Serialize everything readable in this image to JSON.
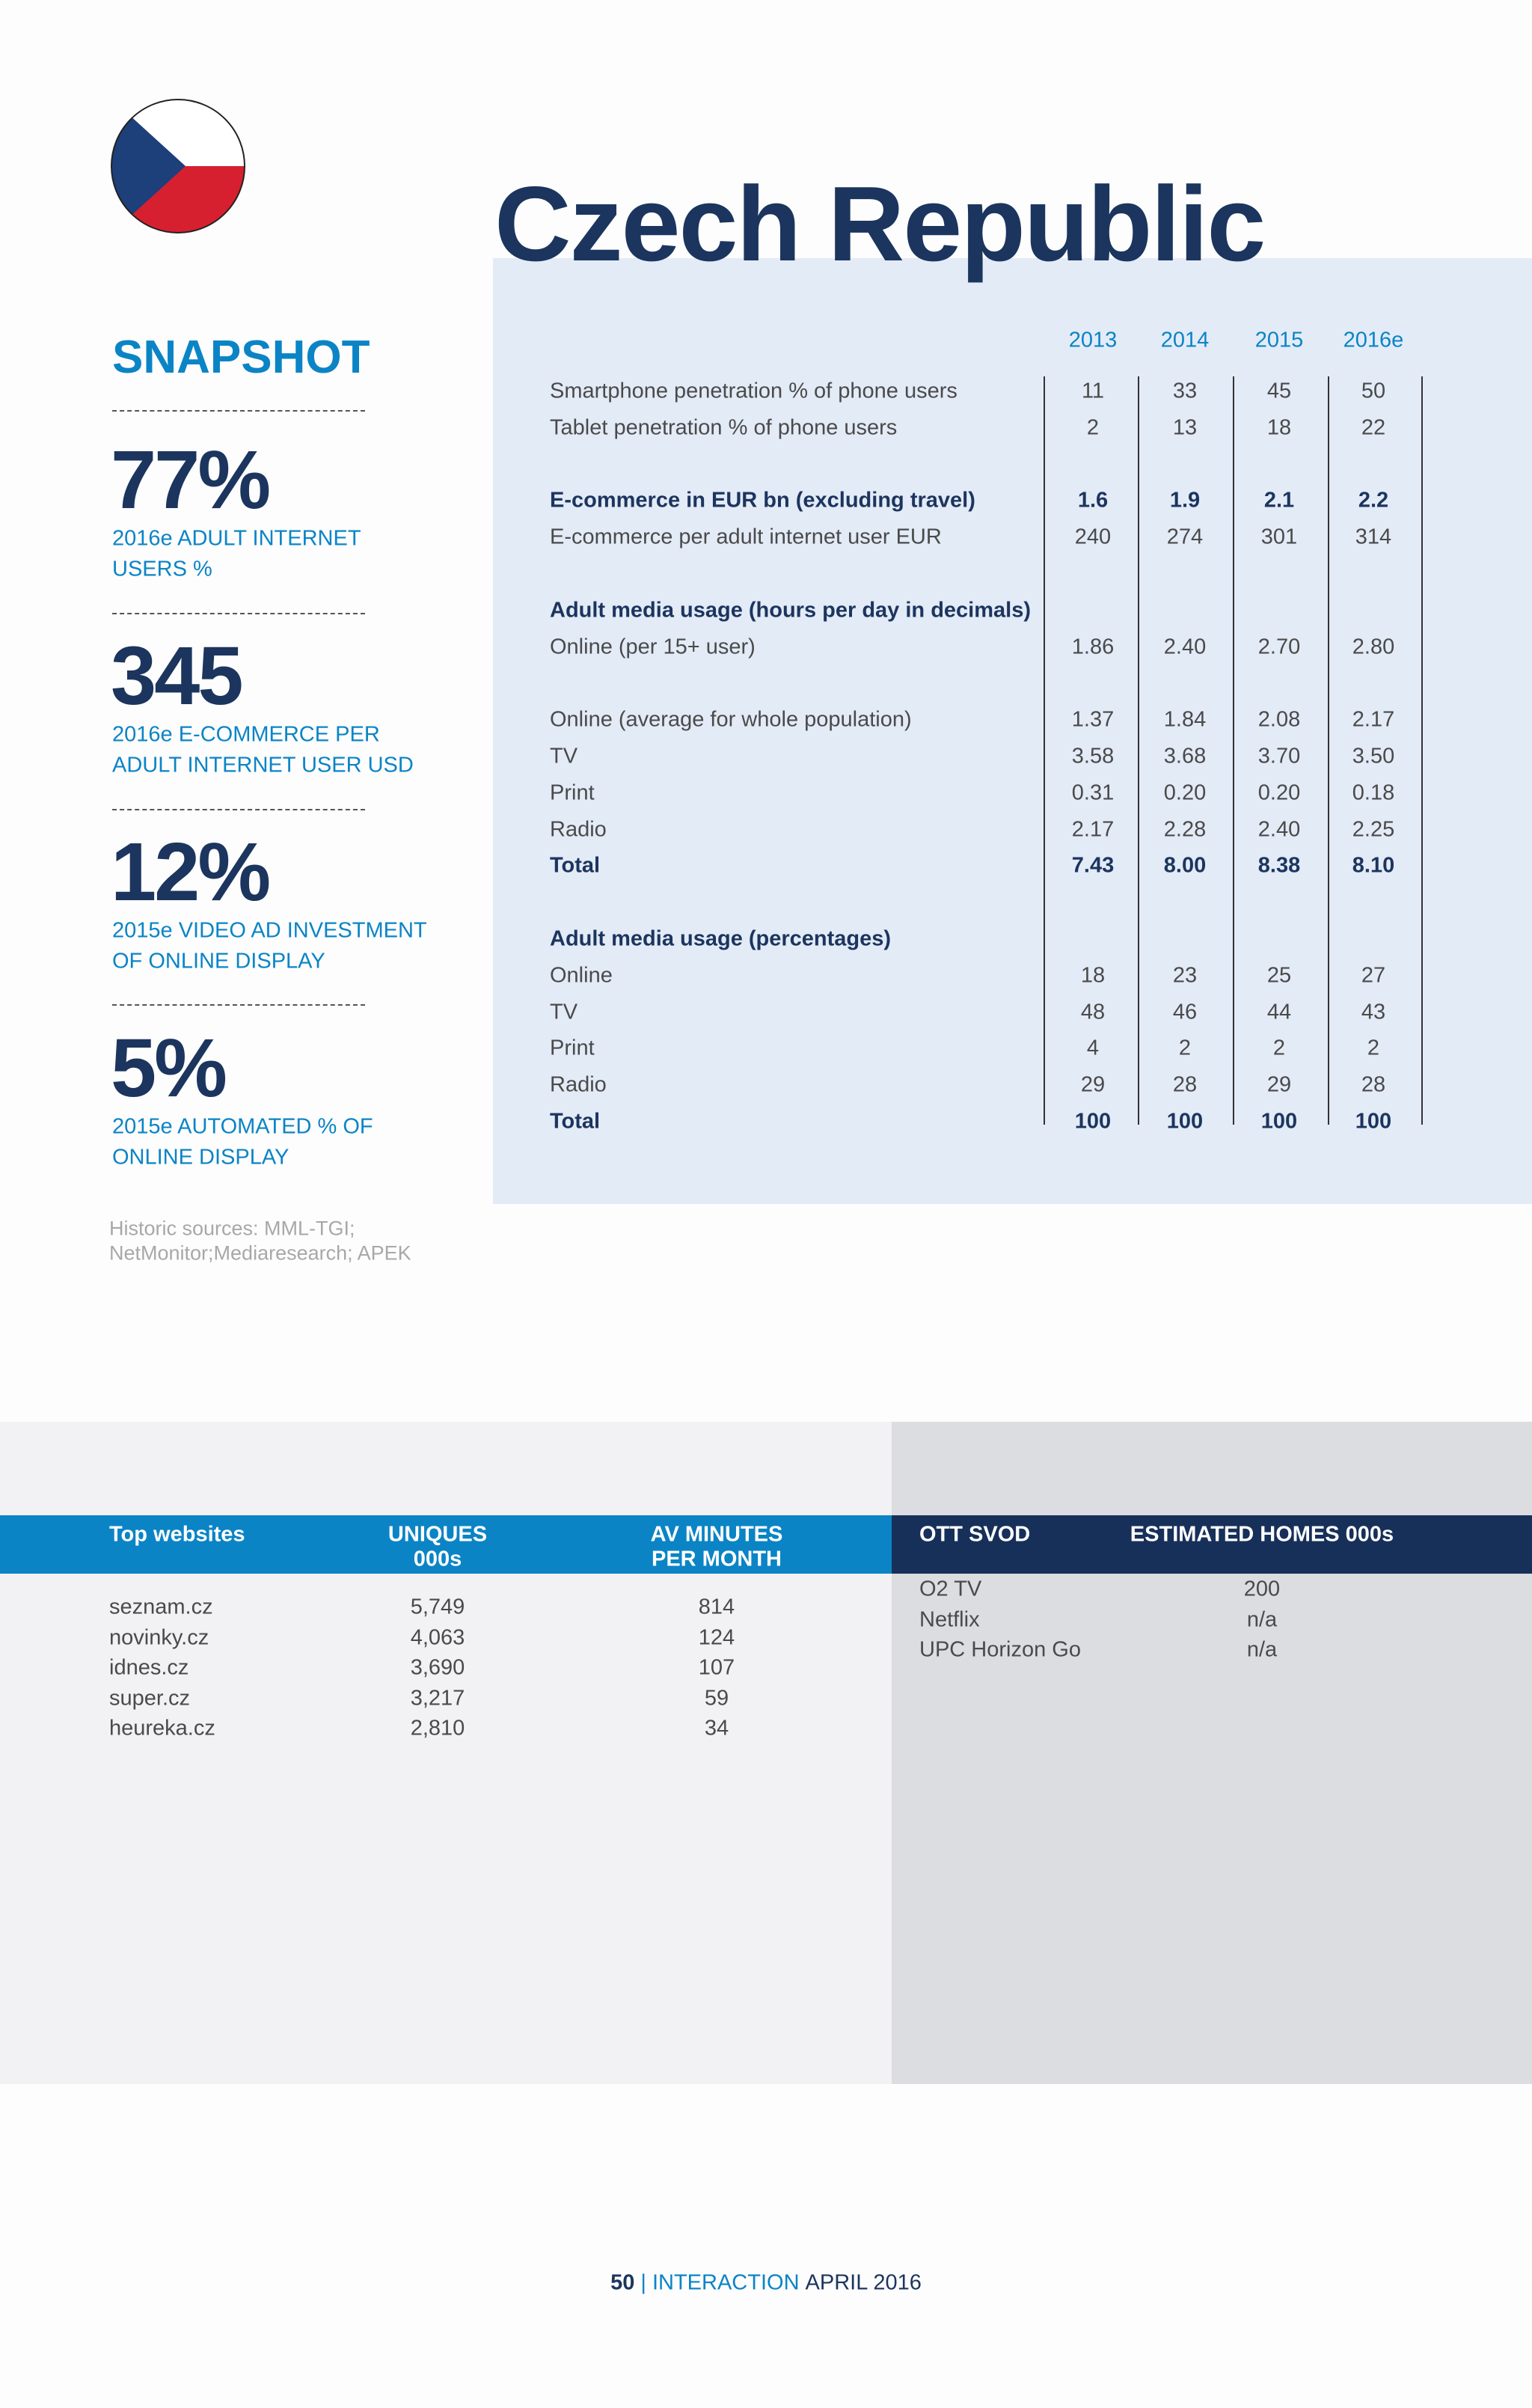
{
  "title": "Czech Republic",
  "snapshot": {
    "heading": "SNAPSHOT",
    "items": [
      {
        "value": "77%",
        "label_lines": [
          "2016e ADULT INTERNET",
          "USERS %"
        ]
      },
      {
        "value": "345",
        "label_lines": [
          "2016e E-COMMERCE PER",
          "ADULT INTERNET USER USD"
        ]
      },
      {
        "value": "12%",
        "label_lines": [
          "2015e VIDEO AD INVESTMENT",
          "OF ONLINE DISPLAY"
        ]
      },
      {
        "value": "5%",
        "label_lines": [
          "2015e AUTOMATED % OF",
          "ONLINE DISPLAY"
        ]
      }
    ],
    "sources": [
      "Historic sources: MML-TGI;",
      "NetMonitor;Mediaresearch; APEK"
    ]
  },
  "table": {
    "columns": [
      "2013",
      "2014",
      "2015",
      "2016e"
    ],
    "groups": [
      {
        "rows": [
          {
            "label": "Smartphone penetration % of phone users",
            "values": [
              "11",
              "33",
              "45",
              "50"
            ]
          },
          {
            "label": "Tablet penetration % of phone users",
            "values": [
              "2",
              "13",
              "18",
              "22"
            ]
          }
        ]
      },
      {
        "rows": [
          {
            "label": "E-commerce in EUR bn (excluding travel)",
            "values": [
              "1.6",
              "1.9",
              "2.1",
              "2.2"
            ],
            "bold": true
          },
          {
            "label": "E-commerce per adult internet user EUR",
            "values": [
              "240",
              "274",
              "301",
              "314"
            ]
          }
        ]
      },
      {
        "heading": "Adult media usage (hours per day in decimals)",
        "rows": [
          {
            "label": "Online (per 15+ user)",
            "values": [
              "1.86",
              "2.40",
              "2.70",
              "2.80"
            ]
          }
        ]
      },
      {
        "rows": [
          {
            "label": "Online (average for whole population)",
            "values": [
              "1.37",
              "1.84",
              "2.08",
              "2.17"
            ]
          },
          {
            "label": "TV",
            "values": [
              "3.58",
              "3.68",
              "3.70",
              "3.50"
            ]
          },
          {
            "label": "Print",
            "values": [
              "0.31",
              "0.20",
              "0.20",
              "0.18"
            ]
          },
          {
            "label": "Radio",
            "values": [
              "2.17",
              "2.28",
              "2.40",
              "2.25"
            ]
          },
          {
            "label": "Total",
            "values": [
              "7.43",
              "8.00",
              "8.38",
              "8.10"
            ],
            "bold": true
          }
        ]
      },
      {
        "heading": "Adult media usage (percentages)",
        "rows": [
          {
            "label": "Online",
            "values": [
              "18",
              "23",
              "25",
              "27"
            ]
          },
          {
            "label": "TV",
            "values": [
              "48",
              "46",
              "44",
              "43"
            ]
          },
          {
            "label": "Print",
            "values": [
              "4",
              "2",
              "2",
              "2"
            ]
          },
          {
            "label": "Radio",
            "values": [
              "29",
              "28",
              "29",
              "28"
            ]
          },
          {
            "label": "Total",
            "values": [
              "100",
              "100",
              "100",
              "100"
            ],
            "bold": true
          }
        ]
      }
    ]
  },
  "websites": {
    "headers": [
      [
        "Top websites"
      ],
      [
        "UNIQUES",
        "000s"
      ],
      [
        "AV MINUTES",
        "PER MONTH"
      ]
    ],
    "rows": [
      [
        "seznam.cz",
        "5,749",
        "814"
      ],
      [
        "novinky.cz",
        "4,063",
        "124"
      ],
      [
        "idnes.cz",
        "3,690",
        "107"
      ],
      [
        "super.cz",
        "3,217",
        "59"
      ],
      [
        "heureka.cz",
        "2,810",
        "34"
      ]
    ]
  },
  "svod": {
    "headers": [
      "OTT SVOD",
      "ESTIMATED HOMES 000s"
    ],
    "rows": [
      [
        "O2 TV",
        "200"
      ],
      [
        "Netflix",
        "n/a"
      ],
      [
        "UPC Horizon Go",
        "n/a"
      ]
    ]
  },
  "footer": {
    "page": "50",
    "separator": "|",
    "publication": "INTERACTION",
    "date": "APRIL 2016"
  }
}
